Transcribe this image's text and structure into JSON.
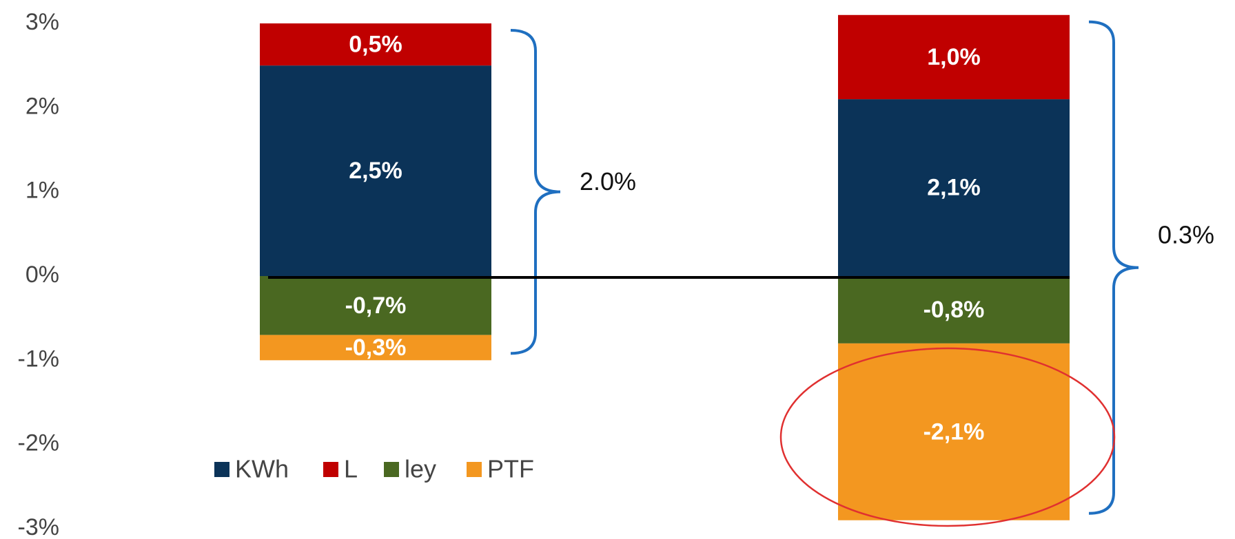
{
  "chart_data": {
    "type": "stacked_bar",
    "categories": [
      null,
      null
    ],
    "series": [
      {
        "name": "KWh",
        "color": "#0b3358",
        "values": [
          2.5,
          2.1
        ],
        "value_labels": [
          "2,5%",
          "2,1%"
        ]
      },
      {
        "name": "L",
        "color": "#c00000",
        "values": [
          0.5,
          1.0
        ],
        "value_labels": [
          "0,5%",
          "1,0%"
        ]
      },
      {
        "name": "ley",
        "color": "#4a6821",
        "values": [
          -0.7,
          -0.8
        ],
        "value_labels": [
          "-0,7%",
          "-0,8%"
        ]
      },
      {
        "name": "PTF",
        "color": "#f39720",
        "values": [
          -0.3,
          -2.1
        ],
        "value_labels": [
          "-0,3%",
          "-2,1%"
        ]
      }
    ],
    "annotations": [
      "2.0%",
      "0.3%"
    ],
    "ylim": [
      -3,
      3
    ],
    "yticks": [
      {
        "value": 3,
        "label": "3%"
      },
      {
        "value": 2,
        "label": "2%"
      },
      {
        "value": 1,
        "label": "1%"
      },
      {
        "value": 0,
        "label": "0%"
      },
      {
        "value": -1,
        "label": "-1%"
      },
      {
        "value": -2,
        "label": "-2%"
      },
      {
        "value": -3,
        "label": "-3%"
      }
    ],
    "legend": "bottom-left"
  }
}
